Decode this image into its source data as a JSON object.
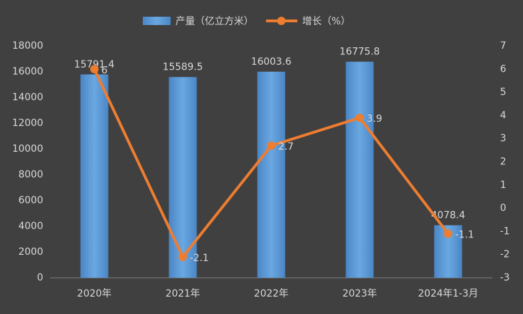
{
  "chart_data": {
    "type": "combo",
    "categories": [
      "2020年",
      "2021年",
      "2022年",
      "2023年",
      "2024年1-3月"
    ],
    "series": [
      {
        "name": "产量（亿立方米）",
        "type": "bar",
        "color": "#5b9bd5",
        "values": [
          15791.4,
          15589.5,
          16003.6,
          16775.8,
          4078.4
        ]
      },
      {
        "name": "增长（%）",
        "type": "line",
        "color": "#ed7d31",
        "axis": "y2",
        "values": [
          6,
          -2.1,
          2.7,
          3.9,
          -1.1
        ]
      }
    ],
    "ylim": [
      0,
      18000
    ],
    "yticks": [
      0,
      2000,
      4000,
      6000,
      8000,
      10000,
      12000,
      14000,
      16000,
      18000
    ],
    "y2lim": [
      -3,
      7
    ],
    "y2ticks": [
      -3,
      -2,
      -1,
      0,
      1,
      2,
      3,
      4,
      5,
      6,
      7
    ],
    "grid": false,
    "legend": "top"
  }
}
